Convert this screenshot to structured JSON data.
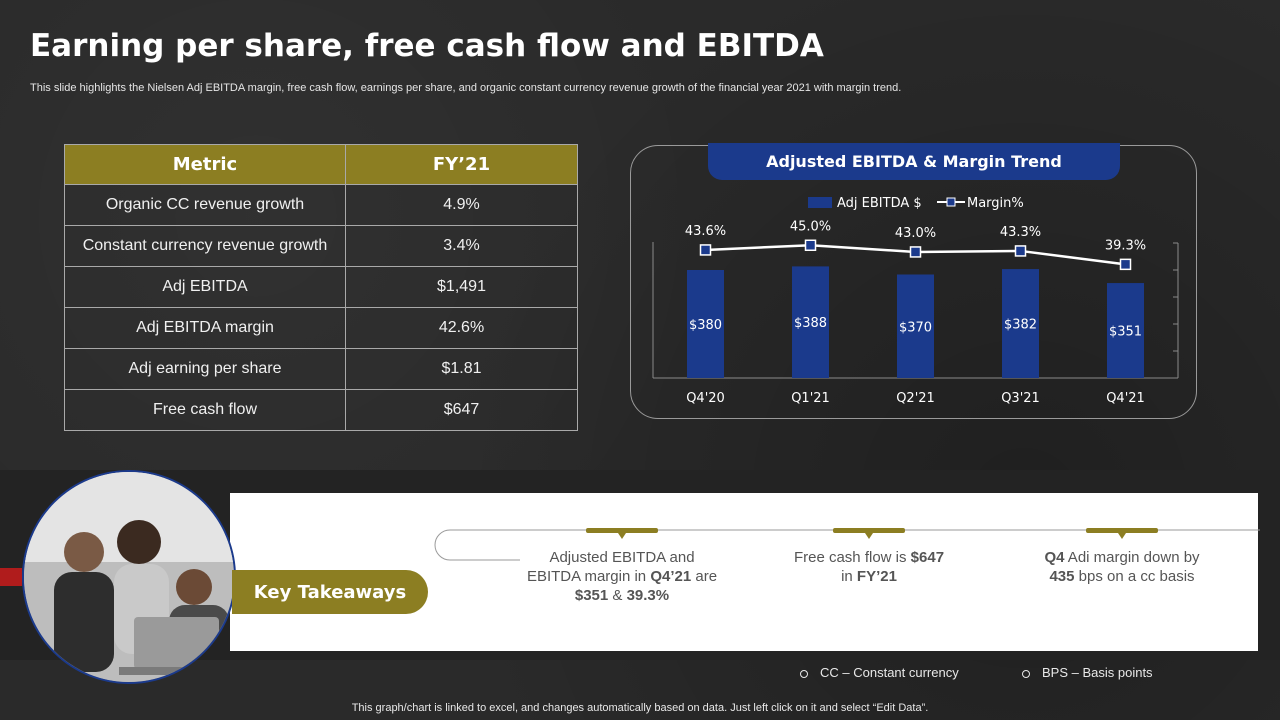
{
  "title": "Earning per share, free cash flow and EBITDA",
  "subtitle": "This slide highlights the Nielsen Adj EBITDA margin, free cash flow, earnings per share, and organic constant currency revenue growth of the financial year 2021 with margin trend.",
  "table": {
    "headers": [
      "Metric",
      "FY’21"
    ],
    "rows": [
      [
        "Organic CC revenue growth",
        "4.9%"
      ],
      [
        "Constant currency revenue growth",
        "3.4%"
      ],
      [
        "Adj EBITDA",
        "$1,491"
      ],
      [
        "Adj EBITDA margin",
        "42.6%"
      ],
      [
        "Adj earning per share",
        "$1.81"
      ],
      [
        "Free cash flow",
        "$647"
      ]
    ]
  },
  "chart_data": {
    "type": "bar",
    "title": "Adjusted EBITDA & Margin Trend",
    "categories": [
      "Q4'20",
      "Q1'21",
      "Q2'21",
      "Q3'21",
      "Q4'21"
    ],
    "series": [
      {
        "name": "Adj EBITDA $",
        "type": "bar",
        "values": [
          380,
          388,
          370,
          382,
          351
        ],
        "labels": [
          "$380",
          "$388",
          "$370",
          "$382",
          "$351"
        ],
        "color": "#1b3a8c"
      },
      {
        "name": "Margin%",
        "type": "line",
        "values": [
          43.6,
          45.0,
          43.0,
          43.3,
          39.3
        ],
        "labels": [
          "43.6%",
          "45.0%",
          "43.0%",
          "43.3%",
          "39.3%"
        ],
        "color": "#ffffff"
      }
    ],
    "legend": "top"
  },
  "takeaways": {
    "label": "Key Takeaways",
    "item1": {
      "t1": "Adjusted EBITDA and EBITDA margin in ",
      "b1": "Q4’21",
      "t2": " are ",
      "b2": "$351",
      "t3": " & ",
      "b3": "39.3%"
    },
    "item2": {
      "t1": "Free cash flow is ",
      "b1": "$647",
      "t2": " in ",
      "b2": "FY’21"
    },
    "item3": {
      "b1": "Q4",
      "t1": " Adi margin down by ",
      "b2": "435",
      "t2": " bps on a cc basis"
    }
  },
  "notes": {
    "cc": "CC – Constant currency",
    "bps": "BPS – Basis points"
  },
  "footer": "This graph/chart is linked to excel, and changes automatically based on data. Just left click on it and select “Edit Data”.",
  "colors": {
    "olive": "#8c7e22",
    "navy": "#1b3a8c",
    "background": "#2a2a2a"
  }
}
